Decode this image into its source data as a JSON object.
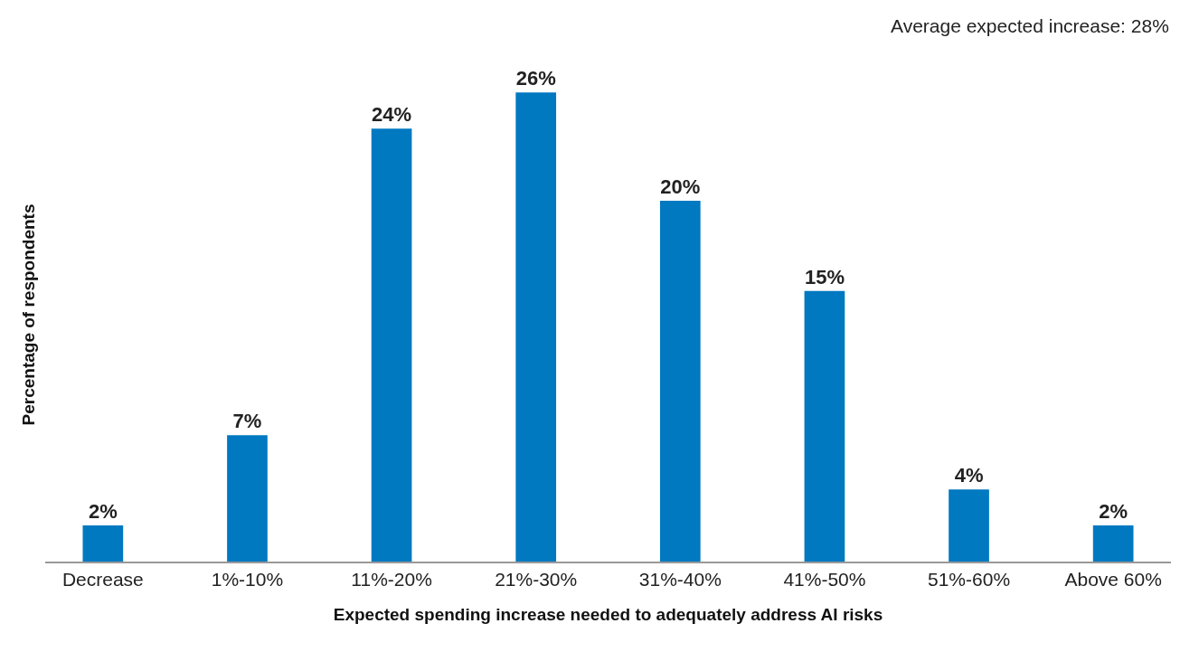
{
  "chart_data": {
    "type": "bar",
    "xlabel": "Expected spending increase needed to adequately address AI risks",
    "ylabel": "Percentage of respondents",
    "annotations": [
      "Average expected increase: 28%"
    ],
    "categories": [
      "Decrease",
      "1%-10%",
      "11%-20%",
      "21%-30%",
      "31%-40%",
      "41%-50%",
      "51%-60%",
      "Above 60%"
    ],
    "values": [
      2,
      7,
      24,
      26,
      20,
      15,
      4,
      2
    ],
    "value_labels": [
      "2%",
      "7%",
      "24%",
      "26%",
      "20%",
      "15%",
      "4%",
      "2%"
    ],
    "color": "#0079c1",
    "grid": false,
    "legend": false
  }
}
